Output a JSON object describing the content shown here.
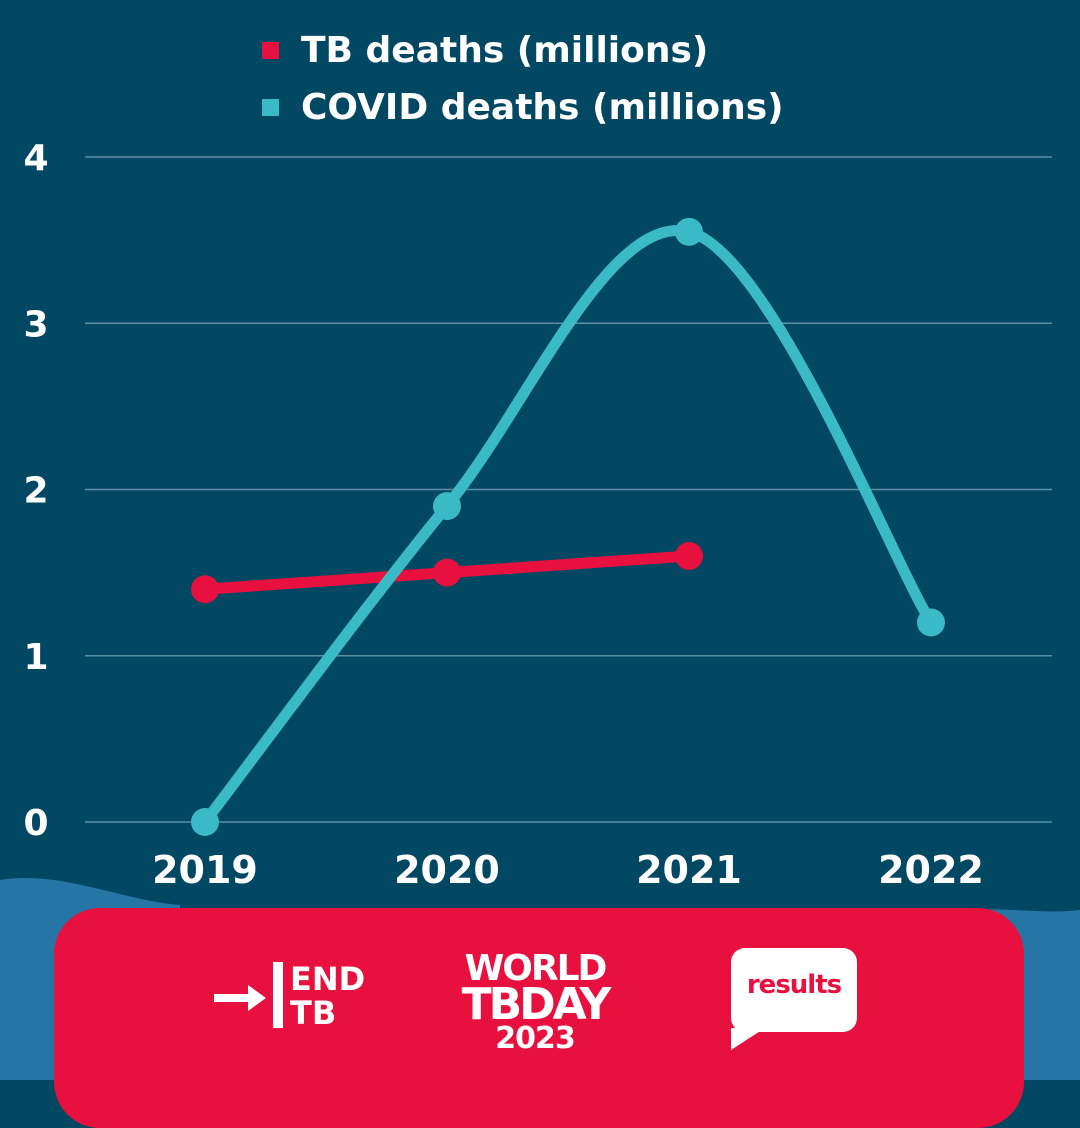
{
  "colors": {
    "background": "#034863",
    "gridline": "#5f8ea1",
    "tb": "#e8103e",
    "covid": "#3ab9c6",
    "text": "#ffffff",
    "footer": "#e8103e",
    "wave": "#2b7fb0"
  },
  "legend": {
    "tb": "TB deaths (millions)",
    "covid": "COVID deaths (millions)"
  },
  "chart_data": {
    "type": "line",
    "x": [
      "2019",
      "2020",
      "2021",
      "2022"
    ],
    "yticks": [
      "0",
      "1",
      "2",
      "3",
      "4"
    ],
    "ylim": [
      0,
      4
    ],
    "grid": true,
    "legend_position": "top",
    "series": [
      {
        "name": "TB deaths (millions)",
        "color": "#e8103e",
        "values": [
          1.4,
          1.5,
          1.6,
          null
        ]
      },
      {
        "name": "COVID deaths (millions)",
        "color": "#3ab9c6",
        "values": [
          0,
          1.9,
          3.55,
          1.2
        ]
      }
    ]
  },
  "footer": {
    "endtb": {
      "line1": "END",
      "line2": "TB"
    },
    "world_tb_day": {
      "line1": "WORLD",
      "line2": "TBDAY",
      "line3": "2023"
    },
    "results": {
      "label": "results"
    }
  }
}
